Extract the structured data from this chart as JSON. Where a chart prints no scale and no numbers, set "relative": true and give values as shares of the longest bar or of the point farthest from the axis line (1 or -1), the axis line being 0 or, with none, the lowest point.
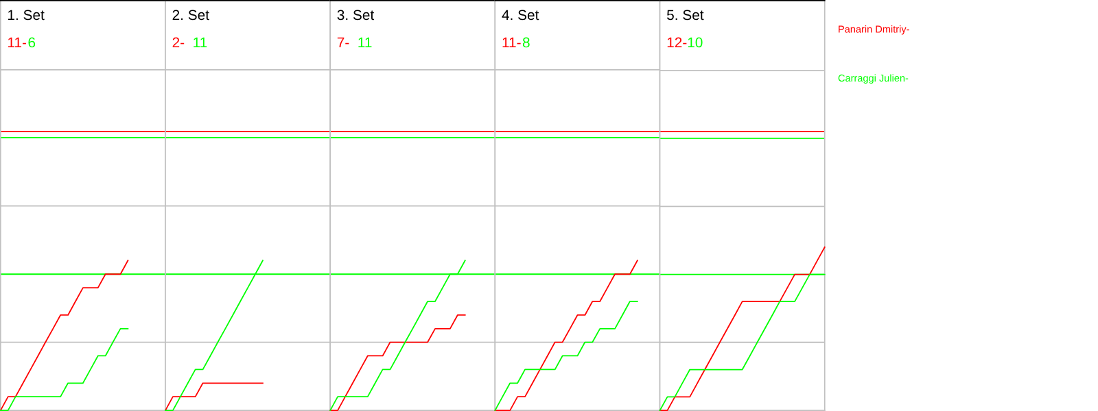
{
  "chart_data": [
    {
      "type": "line",
      "title": "1. Set",
      "relative": true,
      "annotations": [
        "11-",
        "6"
      ],
      "categories": [
        null,
        null,
        null,
        null,
        null,
        null,
        null,
        null,
        null,
        null,
        null,
        null,
        null,
        null,
        null,
        null,
        null,
        null,
        null,
        null,
        null,
        null,
        null
      ],
      "ref_lines": [
        {
          "axis": "y",
          "value": 0.455,
          "color": "#c0c0c0"
        },
        {
          "axis": "y",
          "value": 1.364,
          "color": "#c0c0c0"
        },
        {
          "axis": "y",
          "value": 2.273,
          "color": "#c0c0c0"
        },
        {
          "axis": "y",
          "value": 0.909,
          "color": "#00ff00"
        },
        {
          "axis": "y",
          "value": 1.82,
          "color": "#00ff00"
        },
        {
          "axis": "y",
          "value": 1.86,
          "color": "#ff0000"
        }
      ],
      "series": [
        {
          "color": "#ff0000",
          "values": [
            0,
            0.091,
            0.091,
            0.182,
            0.273,
            0.364,
            0.455,
            0.545,
            0.636,
            0.636,
            0.727,
            0.818,
            0.818,
            0.818,
            0.909,
            0.909,
            0.909,
            1,
            null,
            null,
            null,
            null,
            null
          ]
        },
        {
          "color": "#00ff00",
          "values": [
            0,
            0,
            0.091,
            0.091,
            0.091,
            0.091,
            0.091,
            0.091,
            0.091,
            0.182,
            0.182,
            0.182,
            0.273,
            0.364,
            0.364,
            0.455,
            0.545,
            0.545,
            null,
            null,
            null,
            null,
            null
          ]
        }
      ]
    },
    {
      "type": "line",
      "title": "2. Set",
      "relative": true,
      "annotations": [
        "2-",
        "11"
      ],
      "categories": [
        null,
        null,
        null,
        null,
        null,
        null,
        null,
        null,
        null,
        null,
        null,
        null,
        null,
        null,
        null,
        null,
        null,
        null,
        null,
        null,
        null,
        null,
        null
      ],
      "ref_lines": [
        {
          "axis": "y",
          "value": 0.455,
          "color": "#c0c0c0"
        },
        {
          "axis": "y",
          "value": 1.364,
          "color": "#c0c0c0"
        },
        {
          "axis": "y",
          "value": 2.273,
          "color": "#c0c0c0"
        },
        {
          "axis": "y",
          "value": 0.909,
          "color": "#00ff00"
        },
        {
          "axis": "y",
          "value": 1.82,
          "color": "#00ff00"
        },
        {
          "axis": "y",
          "value": 1.86,
          "color": "#ff0000"
        }
      ],
      "series": [
        {
          "color": "#ff0000",
          "values": [
            0,
            0.091,
            0.091,
            0.091,
            0.091,
            0.182,
            0.182,
            0.182,
            0.182,
            0.182,
            0.182,
            0.182,
            0.182,
            0.182,
            null,
            null,
            null,
            null,
            null,
            null,
            null,
            null,
            null
          ]
        },
        {
          "color": "#00ff00",
          "values": [
            0,
            0,
            0.091,
            0.182,
            0.273,
            0.273,
            0.364,
            0.455,
            0.545,
            0.636,
            0.727,
            0.818,
            0.909,
            1,
            null,
            null,
            null,
            null,
            null,
            null,
            null,
            null,
            null
          ]
        }
      ]
    },
    {
      "type": "line",
      "title": "3. Set",
      "relative": true,
      "annotations": [
        "7-",
        "11"
      ],
      "categories": [
        null,
        null,
        null,
        null,
        null,
        null,
        null,
        null,
        null,
        null,
        null,
        null,
        null,
        null,
        null,
        null,
        null,
        null,
        null,
        null,
        null,
        null,
        null
      ],
      "ref_lines": [
        {
          "axis": "y",
          "value": 0.455,
          "color": "#c0c0c0"
        },
        {
          "axis": "y",
          "value": 1.364,
          "color": "#c0c0c0"
        },
        {
          "axis": "y",
          "value": 2.273,
          "color": "#c0c0c0"
        },
        {
          "axis": "y",
          "value": 0.909,
          "color": "#00ff00"
        },
        {
          "axis": "y",
          "value": 1.82,
          "color": "#00ff00"
        },
        {
          "axis": "y",
          "value": 1.86,
          "color": "#ff0000"
        }
      ],
      "series": [
        {
          "color": "#ff0000",
          "values": [
            0,
            0,
            0.091,
            0.182,
            0.273,
            0.364,
            0.364,
            0.364,
            0.455,
            0.455,
            0.455,
            0.455,
            0.455,
            0.455,
            0.545,
            0.545,
            0.545,
            0.636,
            0.636,
            null,
            null,
            null,
            null
          ]
        },
        {
          "color": "#00ff00",
          "values": [
            0,
            0.091,
            0.091,
            0.091,
            0.091,
            0.091,
            0.182,
            0.273,
            0.273,
            0.364,
            0.455,
            0.545,
            0.636,
            0.727,
            0.727,
            0.818,
            0.909,
            0.909,
            1,
            null,
            null,
            null,
            null
          ]
        }
      ]
    },
    {
      "type": "line",
      "title": "4. Set",
      "relative": true,
      "annotations": [
        "11-",
        "8"
      ],
      "categories": [
        null,
        null,
        null,
        null,
        null,
        null,
        null,
        null,
        null,
        null,
        null,
        null,
        null,
        null,
        null,
        null,
        null,
        null,
        null,
        null,
        null,
        null,
        null
      ],
      "ref_lines": [
        {
          "axis": "y",
          "value": 0.455,
          "color": "#c0c0c0"
        },
        {
          "axis": "y",
          "value": 1.364,
          "color": "#c0c0c0"
        },
        {
          "axis": "y",
          "value": 2.273,
          "color": "#c0c0c0"
        },
        {
          "axis": "y",
          "value": 0.909,
          "color": "#00ff00"
        },
        {
          "axis": "y",
          "value": 1.82,
          "color": "#00ff00"
        },
        {
          "axis": "y",
          "value": 1.86,
          "color": "#ff0000"
        }
      ],
      "series": [
        {
          "color": "#ff0000",
          "values": [
            0,
            0,
            0,
            0.091,
            0.091,
            0.182,
            0.273,
            0.364,
            0.455,
            0.455,
            0.545,
            0.636,
            0.636,
            0.727,
            0.727,
            0.818,
            0.909,
            0.909,
            0.909,
            1,
            null,
            null,
            null
          ]
        },
        {
          "color": "#00ff00",
          "values": [
            0,
            0.091,
            0.182,
            0.182,
            0.273,
            0.273,
            0.273,
            0.273,
            0.273,
            0.364,
            0.364,
            0.364,
            0.455,
            0.455,
            0.545,
            0.545,
            0.545,
            0.636,
            0.727,
            0.727,
            null,
            null,
            null
          ]
        }
      ]
    },
    {
      "type": "line",
      "title": "5. Set",
      "relative": true,
      "annotations": [
        "12-",
        "10"
      ],
      "legend": "right",
      "categories": [
        null,
        null,
        null,
        null,
        null,
        null,
        null,
        null,
        null,
        null,
        null,
        null,
        null,
        null,
        null,
        null,
        null,
        null,
        null,
        null,
        null,
        null,
        null
      ],
      "ref_lines": [
        {
          "axis": "y",
          "value": 0.417,
          "color": "#c0c0c0"
        },
        {
          "axis": "y",
          "value": 1.25,
          "color": "#c0c0c0"
        },
        {
          "axis": "y",
          "value": 2.083,
          "color": "#c0c0c0"
        },
        {
          "axis": "y",
          "value": 0.833,
          "color": "#00ff00"
        },
        {
          "axis": "y",
          "value": 1.667,
          "color": "#00ff00"
        },
        {
          "axis": "y",
          "value": 1.708,
          "color": "#ff0000"
        }
      ],
      "series": [
        {
          "name": "Panarin Dmitriy-",
          "color": "#ff0000",
          "values": [
            0,
            0,
            0.083,
            0.083,
            0.083,
            0.167,
            0.25,
            0.333,
            0.417,
            0.5,
            0.583,
            0.667,
            0.667,
            0.667,
            0.667,
            0.667,
            0.667,
            0.75,
            0.833,
            0.833,
            0.833,
            0.917,
            1
          ]
        },
        {
          "name": "Carraggi Julien-",
          "color": "#00ff00",
          "values": [
            0,
            0.083,
            0.083,
            0.167,
            0.25,
            0.25,
            0.25,
            0.25,
            0.25,
            0.25,
            0.25,
            0.25,
            0.333,
            0.417,
            0.5,
            0.583,
            0.667,
            0.667,
            0.667,
            0.75,
            0.833,
            0.833,
            0.833
          ]
        }
      ]
    }
  ]
}
